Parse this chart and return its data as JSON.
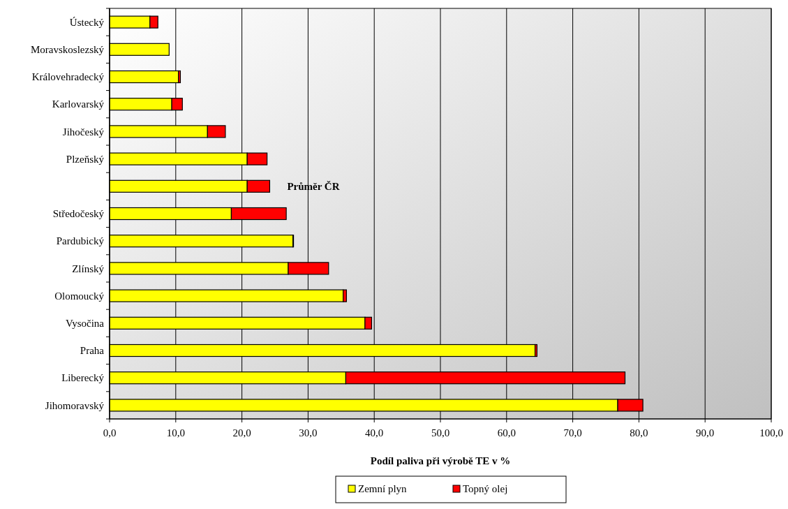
{
  "chart_data": {
    "type": "bar",
    "orientation": "horizontal",
    "stacked": true,
    "categories": [
      "Ústecký",
      "Moravskoslezský",
      "Královehradecký",
      "Karlovarský",
      "Jihočeský",
      "Plzeňský",
      null,
      "Středočeský",
      "Pardubický",
      "Zlínský",
      "Olomoucký",
      "Vysočina",
      "Praha",
      "Liberecký",
      "Jihomoravský"
    ],
    "series": [
      {
        "name": "Zemní plyn",
        "color": "#ffff00",
        "values": [
          6.1,
          9.0,
          10.4,
          9.4,
          14.8,
          20.8,
          20.8,
          18.4,
          27.7,
          27.0,
          35.3,
          38.6,
          64.3,
          35.7,
          76.8
        ]
      },
      {
        "name": "Topný olej",
        "color": "#ff0000",
        "values": [
          1.2,
          0,
          0.3,
          1.6,
          2.7,
          3.0,
          3.4,
          8.3,
          0.1,
          6.1,
          0.5,
          1.0,
          0.3,
          42.2,
          3.8
        ]
      }
    ],
    "xlim": [
      0,
      100
    ],
    "xticks": [
      {
        "value": 0,
        "label": "0,0"
      },
      {
        "value": 10,
        "label": "10,0"
      },
      {
        "value": 20,
        "label": "20,0"
      },
      {
        "value": 30,
        "label": "30,0"
      },
      {
        "value": 40,
        "label": "40,0"
      },
      {
        "value": 50,
        "label": "50,0"
      },
      {
        "value": 60,
        "label": "60,0"
      },
      {
        "value": 70,
        "label": "70,0"
      },
      {
        "value": 80,
        "label": "80,0"
      },
      {
        "value": 90,
        "label": "90,0"
      },
      {
        "value": 100,
        "label": "100,0"
      }
    ],
    "xlabel": "Podíl paliva při výrobě TE v %",
    "annotations": [
      "Průměr ČR"
    ],
    "grid": "x",
    "legend": "bottom"
  }
}
